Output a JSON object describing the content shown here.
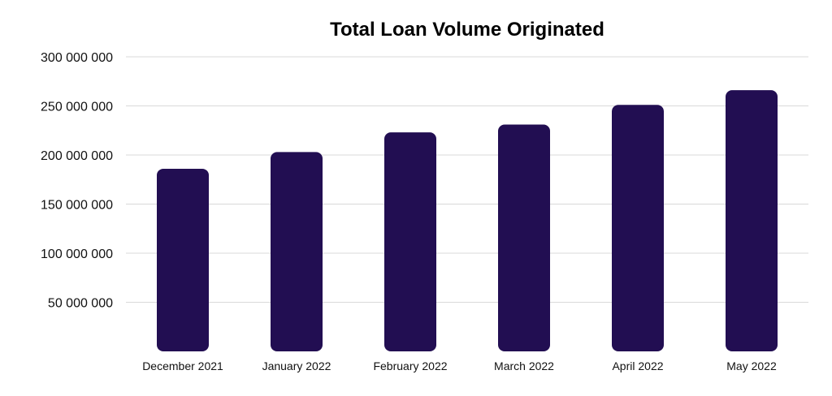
{
  "chart_data": {
    "type": "bar",
    "title": "Total Loan Volume Originated",
    "xlabel": "",
    "ylabel": "",
    "categories": [
      "December 2021",
      "January 2022",
      "February 2022",
      "March 2022",
      "April 2022",
      "May 2022"
    ],
    "values": [
      186000000,
      203000000,
      223000000,
      231000000,
      251000000,
      266000000
    ],
    "ylim": [
      0,
      300000000
    ],
    "yticks": [
      {
        "value": 50000000,
        "label": "50 000 000"
      },
      {
        "value": 100000000,
        "label": "100 000 000"
      },
      {
        "value": 150000000,
        "label": "150 000 000"
      },
      {
        "value": 200000000,
        "label": "200 000 000"
      },
      {
        "value": 250000000,
        "label": "250 000 000"
      },
      {
        "value": 300000000,
        "label": "300 000 000"
      }
    ],
    "grid": true,
    "bar_color": "#220e52",
    "legend": "none"
  }
}
